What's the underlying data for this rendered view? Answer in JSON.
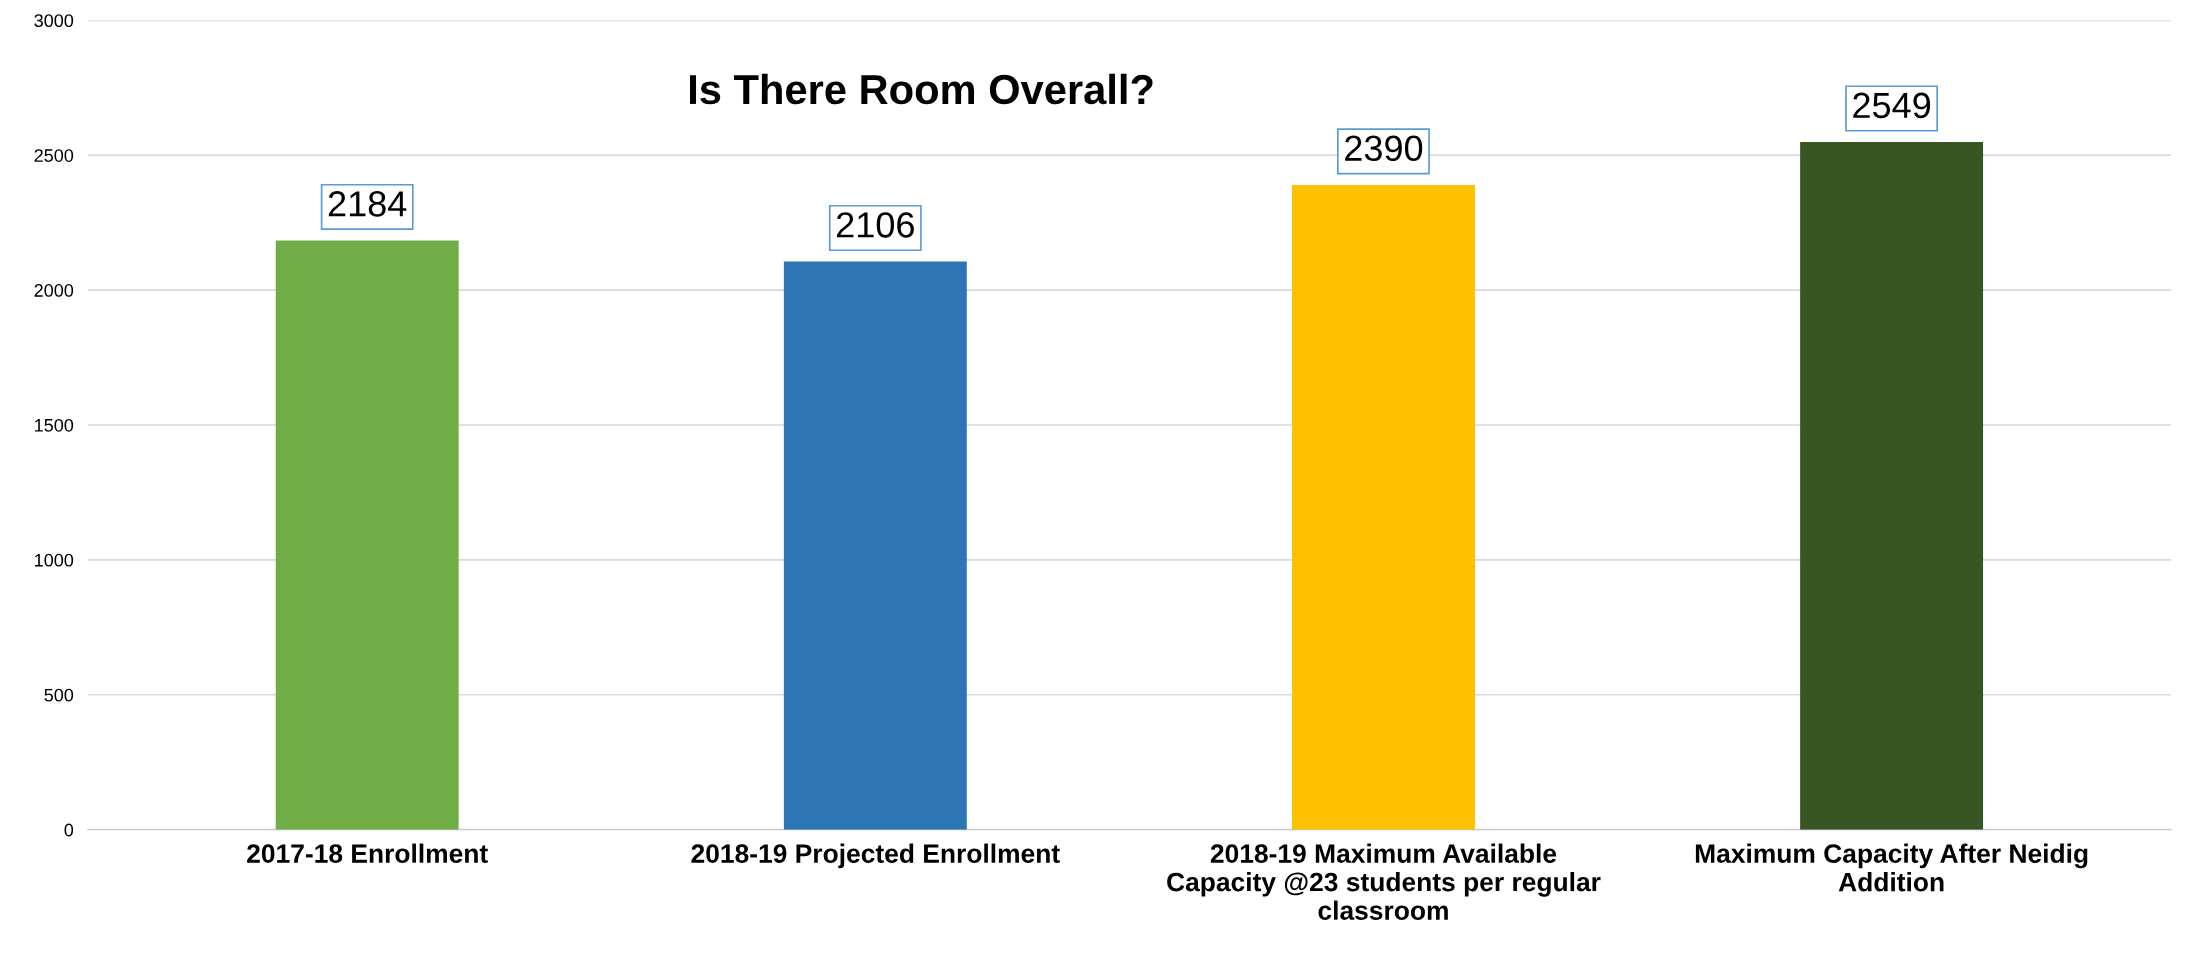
{
  "chart_data": {
    "type": "bar",
    "title": "Is There Room Overall?",
    "categories": [
      "2017-18 Enrollment",
      "2018-19 Projected Enrollment",
      "2018-19 Maximum Available\nCapacity @23 students per regular\nclassroom",
      "Maximum Capacity After Neidig\nAddition"
    ],
    "values": [
      2184,
      2106,
      2390,
      2549
    ],
    "colors": [
      "#70ad47",
      "#2e75b6",
      "#ffc000",
      "#375623"
    ],
    "ylim": [
      0,
      3000
    ],
    "yticks": [
      0,
      500,
      1000,
      1500,
      2000,
      2500,
      3000
    ],
    "grid": "y",
    "data_labels": true
  }
}
